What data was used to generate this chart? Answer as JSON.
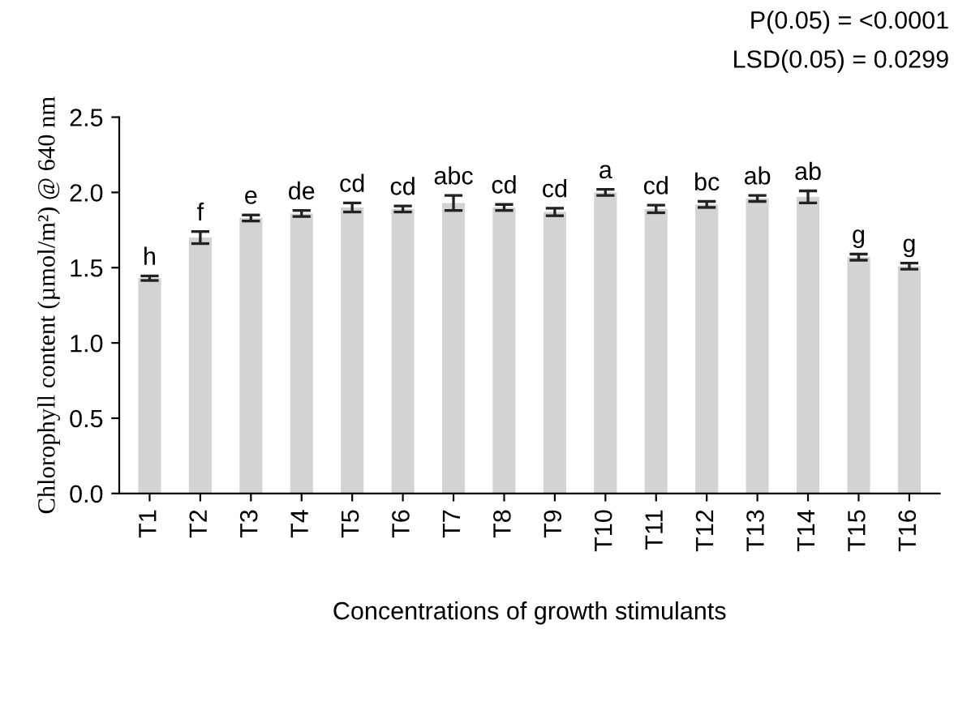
{
  "chart_data": {
    "type": "bar",
    "xlabel": "Concentrations of growth stimulants",
    "ylabel": "Chlorophyll content (µmol/m²) @ 640 nm",
    "categories": [
      "T1",
      "T2",
      "T3",
      "T4",
      "T5",
      "T6",
      "T7",
      "T8",
      "T9",
      "T10",
      "T11",
      "T12",
      "T13",
      "T14",
      "T15",
      "T16"
    ],
    "values": [
      1.43,
      1.7,
      1.83,
      1.86,
      1.9,
      1.89,
      1.93,
      1.9,
      1.87,
      2.0,
      1.89,
      1.92,
      1.96,
      1.97,
      1.57,
      1.51
    ],
    "errors": [
      0.015,
      0.04,
      0.02,
      0.02,
      0.03,
      0.02,
      0.05,
      0.02,
      0.025,
      0.02,
      0.025,
      0.02,
      0.02,
      0.04,
      0.02,
      0.02
    ],
    "value_labels": [
      "h",
      "f",
      "e",
      "de",
      "cd",
      "cd",
      "abc",
      "cd",
      "cd",
      "a",
      "cd",
      "bc",
      "ab",
      "ab",
      "g",
      "g"
    ],
    "color": "#d3d3d3",
    "ylim": [
      0,
      2.5
    ],
    "yticks": [
      {
        "value": 0,
        "label": "0.0"
      },
      {
        "value": 0.5,
        "label": "0.5"
      },
      {
        "value": 1,
        "label": "1.0"
      },
      {
        "value": 1.5,
        "label": "1.5"
      },
      {
        "value": 2,
        "label": "2.0"
      },
      {
        "value": 2.5,
        "label": "2.5"
      }
    ],
    "annotations": [
      "P(0.05) = <0.0001",
      "LSD(0.05) = 0.0299"
    ],
    "grid": false,
    "legend": false
  }
}
